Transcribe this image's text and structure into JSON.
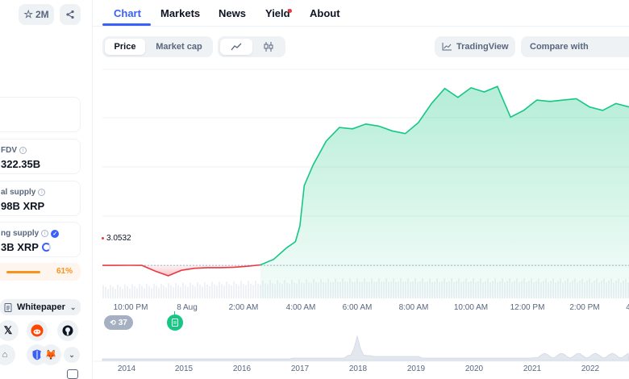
{
  "left_panel": {
    "watchlist_count": "2M",
    "stats": [
      {
        "label": "FDV",
        "value": "322.35B"
      },
      {
        "label": "al supply",
        "value": "98B XRP"
      },
      {
        "label": "ng supply",
        "value": "3B XRP"
      }
    ],
    "supply_progress_label": "61%",
    "supply_progress": 0.61,
    "whitepaper_label": "Whitepaper"
  },
  "tabs": [
    "Chart",
    "Markets",
    "News",
    "Yield",
    "About"
  ],
  "active_tab": "Chart",
  "controls": {
    "price_label": "Price",
    "market_cap_label": "Market cap",
    "tradingview_label": "TradingView",
    "compare_label": "Compare with"
  },
  "chart_data": {
    "type": "line",
    "title": "",
    "reference_price": "3.0532",
    "x_ticks": [
      "10:00 PM",
      "8 Aug",
      "2:00 AM",
      "4:00 AM",
      "6:00 AM",
      "8:00 AM",
      "10:00 AM",
      "12:00 PM",
      "2:00 PM",
      "4"
    ],
    "overview_years": [
      "2014",
      "2015",
      "2016",
      "2017",
      "2018",
      "2019",
      "2020",
      "2021",
      "2022"
    ],
    "events_count": "37",
    "series": [
      {
        "x": [
          "20:00",
          "20:30",
          "21:00",
          "21:30",
          "22:00",
          "22:30",
          "23:00",
          "23:30",
          "00:00",
          "00:30",
          "01:00",
          "01:30",
          "02:00",
          "02:30",
          "03:00",
          "03:20",
          "03:30",
          "03:40",
          "04:00",
          "04:30",
          "05:00",
          "05:30",
          "06:00",
          "06:30",
          "07:00",
          "07:30",
          "08:00",
          "08:30",
          "09:00",
          "09:30",
          "10:00",
          "10:30",
          "11:00",
          "11:30",
          "12:00",
          "12:30",
          "13:00",
          "13:30",
          "14:00",
          "14:30",
          "15:00",
          "15:30",
          "16:00"
        ],
        "values": [
          3.0532,
          3.0533,
          3.0534,
          3.0532,
          3.045,
          3.038,
          3.046,
          3.049,
          3.05,
          3.05,
          3.0505,
          3.052,
          3.054,
          3.062,
          3.079,
          3.088,
          3.111,
          3.17,
          3.2,
          3.235,
          3.255,
          3.253,
          3.26,
          3.257,
          3.25,
          3.246,
          3.262,
          3.29,
          3.312,
          3.299,
          3.313,
          3.307,
          3.315,
          3.27,
          3.28,
          3.295,
          3.293,
          3.295,
          3.297,
          3.285,
          3.28,
          3.29,
          3.285
        ]
      }
    ],
    "colors": {
      "up": "#16c784",
      "down": "#ea3943",
      "reference": "#a6b0c3"
    }
  }
}
